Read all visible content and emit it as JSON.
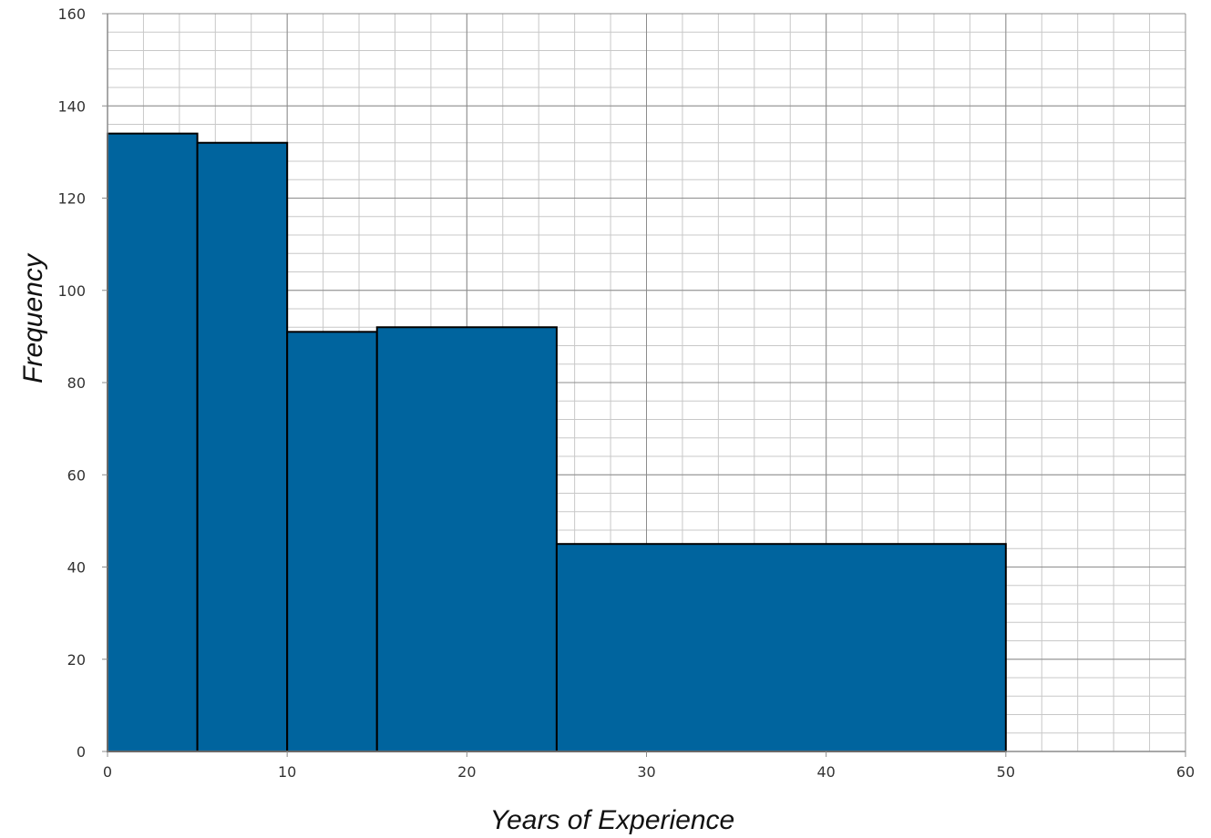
{
  "chart_data": {
    "type": "bar",
    "title": "",
    "xlabel": "Years of Experience",
    "ylabel": "Frequency",
    "xlim": [
      0,
      60
    ],
    "ylim": [
      0,
      160
    ],
    "x_ticks": [
      0,
      10,
      20,
      30,
      40,
      50,
      60
    ],
    "y_ticks": [
      0,
      20,
      40,
      60,
      80,
      100,
      120,
      140,
      160
    ],
    "x_tick_labels": [
      "0",
      "10",
      "20",
      "30",
      "40",
      "50",
      "60"
    ],
    "y_tick_labels": [
      "0",
      "20",
      "40",
      "60",
      "80",
      "100",
      "120",
      "140",
      "160"
    ],
    "grid": true,
    "minor_grid": {
      "x_step": 2,
      "y_step": 4
    },
    "bins": [
      {
        "x_start": 0,
        "x_end": 5,
        "value": 134
      },
      {
        "x_start": 5,
        "x_end": 10,
        "value": 132
      },
      {
        "x_start": 10,
        "x_end": 15,
        "value": 91
      },
      {
        "x_start": 15,
        "x_end": 25,
        "value": 92
      },
      {
        "x_start": 25,
        "x_end": 50,
        "value": 45
      }
    ],
    "colors": {
      "bar_fill": "#00649e",
      "bar_stroke": "#000000",
      "major_grid": "#8c8c8c",
      "minor_grid": "#c8c8c8",
      "axis": "#8c8c8c"
    }
  }
}
